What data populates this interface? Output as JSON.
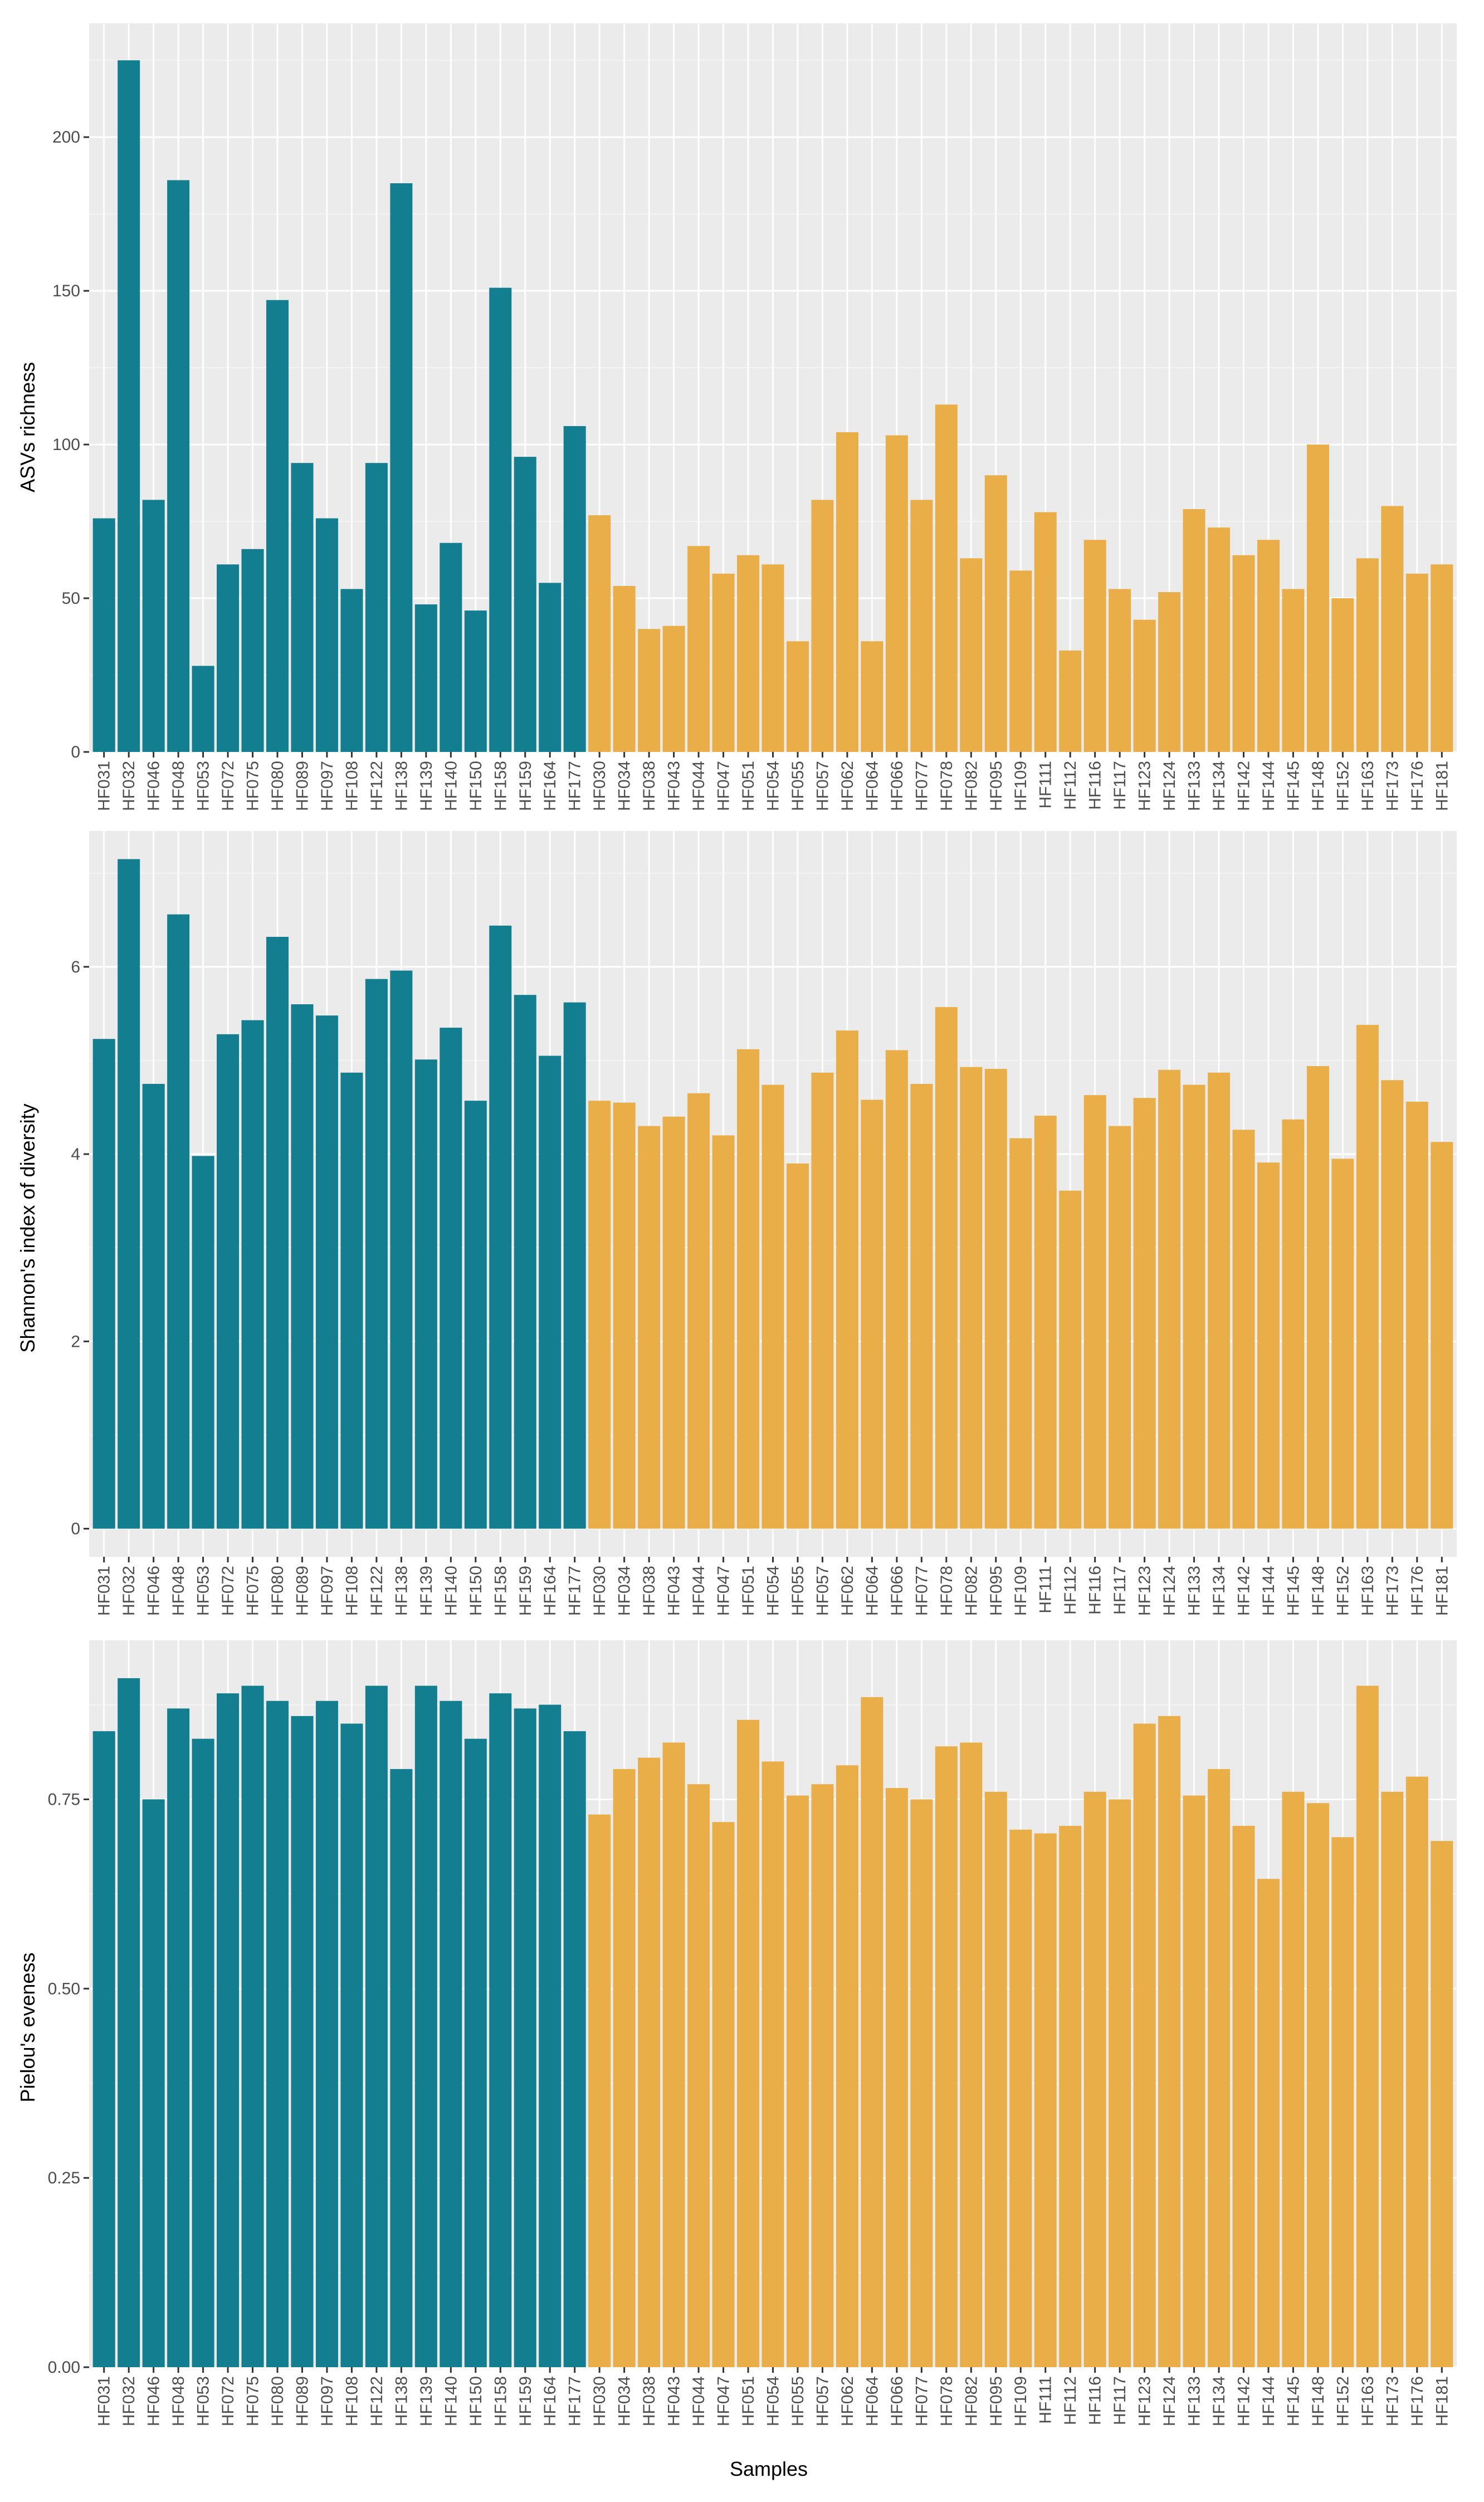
{
  "colors": {
    "group1": "#137e90",
    "group2": "#eaae48"
  },
  "xlabel": "Samples",
  "chart_data": [
    {
      "type": "bar",
      "ylabel": "ASVs richness",
      "ylim": [
        0,
        237
      ],
      "yticks": [
        0,
        50,
        100,
        150,
        200
      ],
      "ytick_labels": [
        "0",
        "50",
        "100",
        "150",
        "200"
      ],
      "grid": true,
      "categories": [
        "HF031",
        "HF032",
        "HF046",
        "HF048",
        "HF053",
        "HF072",
        "HF075",
        "HF080",
        "HF089",
        "HF097",
        "HF108",
        "HF122",
        "HF138",
        "HF139",
        "HF140",
        "HF150",
        "HF158",
        "HF159",
        "HF164",
        "HF177",
        "HF030",
        "HF034",
        "HF038",
        "HF043",
        "HF044",
        "HF047",
        "HF051",
        "HF054",
        "HF055",
        "HF057",
        "HF062",
        "HF064",
        "HF066",
        "HF077",
        "HF078",
        "HF082",
        "HF095",
        "HF109",
        "HF111",
        "HF112",
        "HF116",
        "HF117",
        "HF123",
        "HF124",
        "HF133",
        "HF134",
        "HF142",
        "HF144",
        "HF145",
        "HF148",
        "HF152",
        "HF163",
        "HF173",
        "HF176",
        "HF181"
      ],
      "group_split": 20,
      "values": [
        76,
        225,
        82,
        186,
        28,
        61,
        66,
        147,
        94,
        76,
        53,
        94,
        185,
        48,
        68,
        46,
        151,
        96,
        55,
        106,
        77,
        54,
        40,
        41,
        67,
        58,
        64,
        61,
        36,
        82,
        104,
        36,
        103,
        82,
        113,
        63,
        90,
        59,
        78,
        33,
        69,
        53,
        43,
        52,
        79,
        73,
        64,
        69,
        53,
        100,
        50,
        63,
        80,
        58,
        61
      ]
    },
    {
      "type": "bar",
      "ylabel": "Shannon's index of diversity",
      "ylim": [
        -0.3,
        7.45
      ],
      "yticks": [
        0,
        2,
        4,
        6
      ],
      "ytick_labels": [
        "0",
        "2",
        "4",
        "6"
      ],
      "grid": true,
      "categories": [
        "HF031",
        "HF032",
        "HF046",
        "HF048",
        "HF053",
        "HF072",
        "HF075",
        "HF080",
        "HF089",
        "HF097",
        "HF108",
        "HF122",
        "HF138",
        "HF139",
        "HF140",
        "HF150",
        "HF158",
        "HF159",
        "HF164",
        "HF177",
        "HF030",
        "HF034",
        "HF038",
        "HF043",
        "HF044",
        "HF047",
        "HF051",
        "HF054",
        "HF055",
        "HF057",
        "HF062",
        "HF064",
        "HF066",
        "HF077",
        "HF078",
        "HF082",
        "HF095",
        "HF109",
        "HF111",
        "HF112",
        "HF116",
        "HF117",
        "HF123",
        "HF124",
        "HF133",
        "HF134",
        "HF142",
        "HF144",
        "HF145",
        "HF148",
        "HF152",
        "HF163",
        "HF173",
        "HF176",
        "HF181"
      ],
      "group_split": 20,
      "values": [
        5.23,
        7.15,
        4.75,
        6.56,
        3.98,
        5.28,
        5.43,
        6.32,
        5.6,
        5.48,
        4.87,
        5.87,
        5.96,
        5.01,
        5.35,
        4.57,
        6.44,
        5.7,
        5.05,
        5.62,
        4.57,
        4.55,
        4.3,
        4.4,
        4.65,
        4.2,
        5.12,
        4.74,
        3.9,
        4.87,
        5.32,
        4.58,
        5.11,
        4.75,
        5.57,
        4.93,
        4.91,
        4.17,
        4.41,
        3.61,
        4.63,
        4.3,
        4.6,
        4.9,
        4.74,
        4.87,
        4.26,
        3.91,
        4.37,
        4.94,
        3.95,
        5.38,
        4.79,
        4.56,
        4.13
      ]
    },
    {
      "type": "bar",
      "ylabel": "Pielou's eveness",
      "ylim": [
        0,
        0.96
      ],
      "yticks": [
        0.0,
        0.25,
        0.5,
        0.75
      ],
      "ytick_labels": [
        "0.00",
        "0.25",
        "0.50",
        "0.75"
      ],
      "grid": true,
      "categories": [
        "HF031",
        "HF032",
        "HF046",
        "HF048",
        "HF053",
        "HF072",
        "HF075",
        "HF080",
        "HF089",
        "HF097",
        "HF108",
        "HF122",
        "HF138",
        "HF139",
        "HF140",
        "HF150",
        "HF158",
        "HF159",
        "HF164",
        "HF177",
        "HF030",
        "HF034",
        "HF038",
        "HF043",
        "HF044",
        "HF047",
        "HF051",
        "HF054",
        "HF055",
        "HF057",
        "HF062",
        "HF064",
        "HF066",
        "HF077",
        "HF078",
        "HF082",
        "HF095",
        "HF109",
        "HF111",
        "HF112",
        "HF116",
        "HF117",
        "HF123",
        "HF124",
        "HF133",
        "HF134",
        "HF142",
        "HF144",
        "HF145",
        "HF148",
        "HF152",
        "HF163",
        "HF173",
        "HF176",
        "HF181"
      ],
      "tick_labels": [
        "HF031",
        "HF032",
        "HF046",
        "HF048",
        "HF053",
        "HF072",
        "HF075",
        "HF080",
        "HF089",
        "HF097",
        "HF108",
        "HF122",
        "HF138",
        "HF139",
        "HF140",
        "HF150",
        "HF158",
        "HF159",
        "HF164",
        "HF177",
        "HF030",
        "HF034",
        "HF038",
        "HF043",
        "HF044",
        "HF047",
        "HF051",
        "HF054",
        "HF055",
        "HF057",
        "HF062",
        "HF064",
        "HF066",
        "HF077",
        "HF078",
        "HF082",
        "HF095",
        "HF109",
        "HF111",
        "HF112",
        "HF116",
        "HF117",
        "HF123",
        "HF124",
        "HF133",
        "HF134",
        "HF142",
        "HF144",
        "HF145",
        "HF148",
        "HF152",
        "HF163",
        "HF173",
        "HF176",
        "HF181"
      ],
      "group_split": 20,
      "values": [
        0.84,
        0.91,
        0.75,
        0.87,
        0.83,
        0.89,
        0.9,
        0.88,
        0.86,
        0.88,
        0.85,
        0.9,
        0.79,
        0.9,
        0.88,
        0.83,
        0.89,
        0.87,
        0.875,
        0.84,
        0.73,
        0.79,
        0.805,
        0.825,
        0.77,
        0.72,
        0.855,
        0.8,
        0.755,
        0.77,
        0.795,
        0.885,
        0.765,
        0.75,
        0.82,
        0.825,
        0.76,
        0.71,
        0.705,
        0.715,
        0.76,
        0.75,
        0.85,
        0.86,
        0.755,
        0.79,
        0.715,
        0.645,
        0.76,
        0.745,
        0.7,
        0.9,
        0.76,
        0.78,
        0.695
      ]
    }
  ]
}
